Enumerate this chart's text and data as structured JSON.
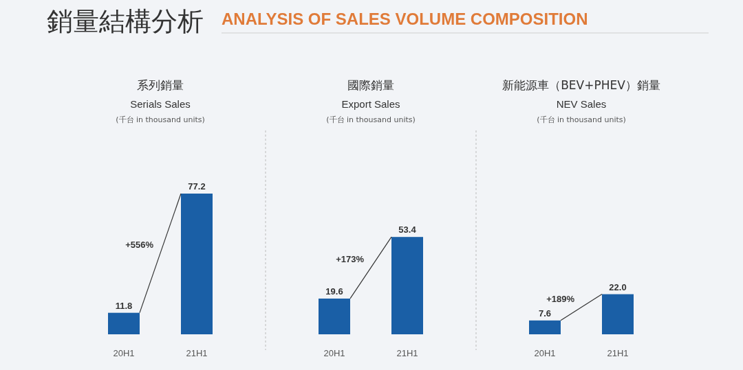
{
  "chart_data": [
    {
      "type": "other",
      "title": "銷量結構分析",
      "subtitle": "ANALYSIS OF SALES VOLUME COMPOSITION"
    },
    {
      "type": "bar",
      "title": "系列銷量",
      "subtitle": "Serials Sales",
      "categories": [
        "20H1",
        "21H1"
      ],
      "tick_labels": "x",
      "color": "#1a5fa6",
      "values": [
        11.8,
        77.2
      ],
      "value_labels": [
        "11.8",
        "77.2"
      ],
      "annotations": [
        "(千台 in thousand units)",
        "+556%"
      ]
    },
    {
      "type": "bar",
      "title": "國際銷量",
      "subtitle": "Export Sales",
      "categories": [
        "20H1",
        "21H1"
      ],
      "tick_labels": "x",
      "color": "#1a5fa6",
      "values": [
        19.6,
        53.4
      ],
      "value_labels": [
        "19.6",
        "53.4"
      ],
      "annotations": [
        "(千台 in thousand units)",
        "+173%"
      ]
    },
    {
      "type": "bar",
      "title": "新能源車（BEV+PHEV）銷量",
      "subtitle": "NEV Sales",
      "categories": [
        "20H1",
        "21H1"
      ],
      "tick_labels": "x",
      "color": "#1a5fa6",
      "values": [
        7.6,
        22.0
      ],
      "value_labels": [
        "7.6",
        "22.0"
      ],
      "annotations": [
        "(千台 in thousand units)",
        "+189%"
      ]
    }
  ]
}
